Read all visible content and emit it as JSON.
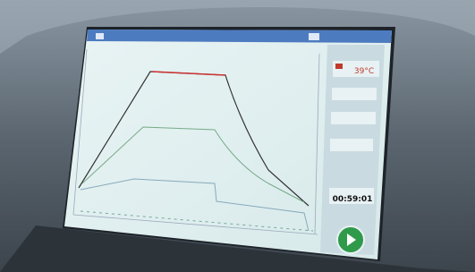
{
  "status": {
    "temperature": "39°C",
    "timer": "00:59:01"
  }
}
